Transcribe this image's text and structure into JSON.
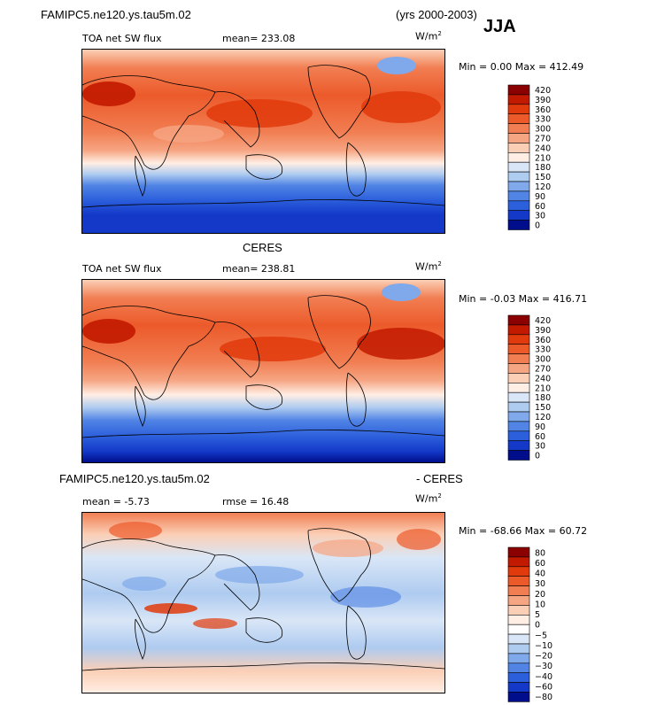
{
  "header": {
    "case": "FAMIPC5.ne120.ys.tau5m.02",
    "years": "(yrs 2000-2003)",
    "season": "JJA"
  },
  "panels": [
    {
      "id": "model",
      "title": "",
      "left_label": "TOA net SW flux",
      "center_label": "mean=  233.08",
      "units": "W/m",
      "units_exp": "2",
      "minmax": "Min =   0.00 Max =  412.49"
    },
    {
      "id": "obs",
      "title": "CERES",
      "left_label": "TOA net SW flux",
      "center_label": "mean=  238.81",
      "units": "W/m",
      "units_exp": "2",
      "minmax": "Min =  -0.03 Max =  416.71"
    },
    {
      "id": "diff",
      "title_left": "FAMIPC5.ne120.ys.tau5m.02",
      "title_right": "- CERES",
      "left_label": "mean =   -5.73",
      "center_label": "rmse =   16.48",
      "units": "W/m",
      "units_exp": "2",
      "minmax": "Min = -68.66 Max =  60.72"
    }
  ],
  "chart_data": [
    {
      "type": "heatmap",
      "title": "TOA net SW flux",
      "units": "W/m2",
      "mean": 233.08,
      "min": 0.0,
      "max": 412.49,
      "colorbar_levels": [
        "420",
        "390",
        "360",
        "330",
        "300",
        "270",
        "240",
        "210",
        "180",
        "150",
        "120",
        "90",
        "60",
        "30",
        "0"
      ],
      "colorbar_colors": [
        "#8b0000",
        "#c21a00",
        "#e13a0c",
        "#ec5a2a",
        "#f17e52",
        "#f6a583",
        "#fbcfb6",
        "#ffeee4",
        "#d9e6f7",
        "#aecbf0",
        "#7fa9ea",
        "#5184e4",
        "#2c5fdc",
        "#1439c9",
        "#000e8c"
      ]
    },
    {
      "type": "heatmap",
      "title": "CERES TOA net SW flux",
      "units": "W/m2",
      "mean": 238.81,
      "min": -0.03,
      "max": 416.71,
      "colorbar_levels": [
        "420",
        "390",
        "360",
        "330",
        "300",
        "270",
        "240",
        "210",
        "180",
        "150",
        "120",
        "90",
        "60",
        "30",
        "0"
      ],
      "colorbar_colors": [
        "#8b0000",
        "#c21a00",
        "#e13a0c",
        "#ec5a2a",
        "#f17e52",
        "#f6a583",
        "#fbcfb6",
        "#ffeee4",
        "#d9e6f7",
        "#aecbf0",
        "#7fa9ea",
        "#5184e4",
        "#2c5fdc",
        "#1439c9",
        "#000e8c"
      ]
    },
    {
      "type": "heatmap",
      "title": "FAMIPC5.ne120.ys.tau5m.02 - CERES",
      "units": "W/m2",
      "mean": -5.73,
      "rmse": 16.48,
      "min": -68.66,
      "max": 60.72,
      "colorbar_levels": [
        "80",
        "60",
        "40",
        "30",
        "20",
        "10",
        "5",
        "0",
        "−5",
        "−10",
        "−20",
        "−30",
        "−40",
        "−60",
        "−80"
      ],
      "colorbar_colors": [
        "#8b0000",
        "#c21a00",
        "#e13a0c",
        "#ec5a2a",
        "#f17e52",
        "#f6a583",
        "#fbcfb6",
        "#ffeee4",
        "#ffffff",
        "#d9e6f7",
        "#aecbf0",
        "#7fa9ea",
        "#5184e4",
        "#2c5fdc",
        "#1439c9",
        "#000e8c"
      ]
    }
  ]
}
